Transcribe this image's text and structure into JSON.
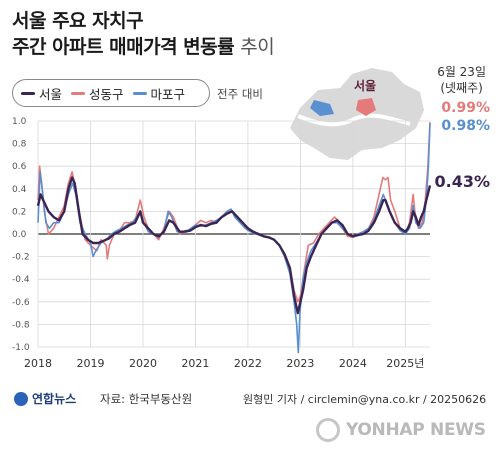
{
  "title_line1": "서울 주요 자치구",
  "title_line2_main": "주간 아파트 매매가격 변동률",
  "title_line2_light": "추이",
  "note": "전주 대비",
  "date_label_line1": "6월 23일",
  "date_label_line2": "(넷째주)",
  "map_label": "서울",
  "credit": "원형민 기자 / circlemin@yna.co.kr / 20250626",
  "source": "자료: 한국부동산원",
  "logo_text": "연합뉴스",
  "watermark_text": "YONHAP NEWS",
  "colors": {
    "seoul": "#3a2553",
    "seongdong": "#e57a7a",
    "mapo": "#5a8fd0",
    "grid": "#d8d8d8"
  },
  "chart_data": {
    "type": "line",
    "title": "서울 주요 자치구 주간 아파트 매매가격 변동률 추이",
    "ylabel": "",
    "xlabel": "",
    "ylim": [
      -1.0,
      1.0
    ],
    "yticks": [
      "1.0",
      "0.8",
      "0.6",
      "0.4",
      "0.2",
      "0.0",
      "-0.2",
      "-0.4",
      "-0.6",
      "-0.8",
      "-1.0"
    ],
    "xticks": [
      "2018",
      "2019",
      "2020",
      "2021",
      "2022",
      "2023",
      "2024",
      "2025년"
    ],
    "xlim": [
      2018.0,
      2025.47
    ],
    "series": [
      {
        "name": "서울",
        "color": "#3a2553",
        "end_label": "0.43%",
        "points": [
          [
            2018.0,
            0.25
          ],
          [
            2018.05,
            0.35
          ],
          [
            2018.1,
            0.3
          ],
          [
            2018.2,
            0.2
          ],
          [
            2018.3,
            0.15
          ],
          [
            2018.4,
            0.12
          ],
          [
            2018.5,
            0.2
          ],
          [
            2018.58,
            0.4
          ],
          [
            2018.65,
            0.5
          ],
          [
            2018.7,
            0.45
          ],
          [
            2018.78,
            0.2
          ],
          [
            2018.85,
            0.0
          ],
          [
            2018.95,
            -0.05
          ],
          [
            2019.05,
            -0.08
          ],
          [
            2019.15,
            -0.08
          ],
          [
            2019.25,
            -0.06
          ],
          [
            2019.35,
            -0.04
          ],
          [
            2019.45,
            0.0
          ],
          [
            2019.55,
            0.02
          ],
          [
            2019.65,
            0.05
          ],
          [
            2019.75,
            0.08
          ],
          [
            2019.85,
            0.1
          ],
          [
            2019.95,
            0.2
          ],
          [
            2020.0,
            0.1
          ],
          [
            2020.1,
            0.05
          ],
          [
            2020.2,
            0.0
          ],
          [
            2020.3,
            -0.02
          ],
          [
            2020.4,
            0.02
          ],
          [
            2020.5,
            0.12
          ],
          [
            2020.58,
            0.1
          ],
          [
            2020.7,
            0.02
          ],
          [
            2020.8,
            0.02
          ],
          [
            2020.9,
            0.03
          ],
          [
            2021.0,
            0.06
          ],
          [
            2021.1,
            0.08
          ],
          [
            2021.2,
            0.07
          ],
          [
            2021.3,
            0.09
          ],
          [
            2021.4,
            0.1
          ],
          [
            2021.5,
            0.15
          ],
          [
            2021.6,
            0.18
          ],
          [
            2021.7,
            0.2
          ],
          [
            2021.8,
            0.15
          ],
          [
            2021.9,
            0.1
          ],
          [
            2022.0,
            0.05
          ],
          [
            2022.1,
            0.02
          ],
          [
            2022.2,
            0.0
          ],
          [
            2022.3,
            -0.02
          ],
          [
            2022.4,
            -0.03
          ],
          [
            2022.5,
            -0.05
          ],
          [
            2022.6,
            -0.1
          ],
          [
            2022.7,
            -0.18
          ],
          [
            2022.8,
            -0.3
          ],
          [
            2022.88,
            -0.55
          ],
          [
            2022.95,
            -0.7
          ],
          [
            2023.0,
            -0.6
          ],
          [
            2023.05,
            -0.5
          ],
          [
            2023.12,
            -0.3
          ],
          [
            2023.2,
            -0.2
          ],
          [
            2023.3,
            -0.1
          ],
          [
            2023.4,
            0.0
          ],
          [
            2023.5,
            0.05
          ],
          [
            2023.6,
            0.1
          ],
          [
            2023.7,
            0.12
          ],
          [
            2023.8,
            0.08
          ],
          [
            2023.9,
            0.0
          ],
          [
            2024.0,
            -0.02
          ],
          [
            2024.1,
            -0.01
          ],
          [
            2024.2,
            0.0
          ],
          [
            2024.3,
            0.03
          ],
          [
            2024.4,
            0.1
          ],
          [
            2024.5,
            0.2
          ],
          [
            2024.58,
            0.3
          ],
          [
            2024.62,
            0.3
          ],
          [
            2024.7,
            0.2
          ],
          [
            2024.8,
            0.1
          ],
          [
            2024.9,
            0.05
          ],
          [
            2025.0,
            0.02
          ],
          [
            2025.05,
            0.05
          ],
          [
            2025.1,
            0.1
          ],
          [
            2025.15,
            0.2
          ],
          [
            2025.2,
            0.15
          ],
          [
            2025.25,
            0.08
          ],
          [
            2025.3,
            0.15
          ],
          [
            2025.35,
            0.2
          ],
          [
            2025.4,
            0.3
          ],
          [
            2025.47,
            0.43
          ]
        ]
      },
      {
        "name": "성동구",
        "color": "#e57a7a",
        "end_label": "0.99%",
        "points": [
          [
            2018.0,
            0.3
          ],
          [
            2018.03,
            0.6
          ],
          [
            2018.07,
            0.45
          ],
          [
            2018.12,
            0.2
          ],
          [
            2018.2,
            0.0
          ],
          [
            2018.3,
            0.05
          ],
          [
            2018.4,
            0.15
          ],
          [
            2018.5,
            0.25
          ],
          [
            2018.58,
            0.45
          ],
          [
            2018.65,
            0.55
          ],
          [
            2018.72,
            0.4
          ],
          [
            2018.8,
            0.15
          ],
          [
            2018.9,
            -0.05
          ],
          [
            2019.0,
            -0.1
          ],
          [
            2019.05,
            -0.12
          ],
          [
            2019.12,
            -0.15
          ],
          [
            2019.2,
            -0.05
          ],
          [
            2019.3,
            -0.1
          ],
          [
            2019.32,
            -0.22
          ],
          [
            2019.36,
            -0.1
          ],
          [
            2019.45,
            0.0
          ],
          [
            2019.55,
            0.03
          ],
          [
            2019.65,
            0.1
          ],
          [
            2019.75,
            0.1
          ],
          [
            2019.85,
            0.12
          ],
          [
            2019.95,
            0.3
          ],
          [
            2020.02,
            0.15
          ],
          [
            2020.1,
            0.05
          ],
          [
            2020.2,
            0.0
          ],
          [
            2020.3,
            -0.05
          ],
          [
            2020.4,
            0.05
          ],
          [
            2020.5,
            0.2
          ],
          [
            2020.58,
            0.15
          ],
          [
            2020.7,
            0.0
          ],
          [
            2020.8,
            0.03
          ],
          [
            2020.9,
            0.03
          ],
          [
            2021.0,
            0.08
          ],
          [
            2021.1,
            0.12
          ],
          [
            2021.2,
            0.1
          ],
          [
            2021.3,
            0.12
          ],
          [
            2021.4,
            0.1
          ],
          [
            2021.5,
            0.15
          ],
          [
            2021.6,
            0.2
          ],
          [
            2021.7,
            0.2
          ],
          [
            2021.8,
            0.15
          ],
          [
            2021.9,
            0.08
          ],
          [
            2022.0,
            0.03
          ],
          [
            2022.1,
            0.02
          ],
          [
            2022.2,
            0.0
          ],
          [
            2022.3,
            -0.02
          ],
          [
            2022.4,
            -0.03
          ],
          [
            2022.5,
            -0.05
          ],
          [
            2022.6,
            -0.1
          ],
          [
            2022.7,
            -0.2
          ],
          [
            2022.8,
            -0.3
          ],
          [
            2022.88,
            -0.5
          ],
          [
            2022.95,
            -0.6
          ],
          [
            2023.0,
            -0.55
          ],
          [
            2023.08,
            -0.3
          ],
          [
            2023.15,
            -0.1
          ],
          [
            2023.25,
            -0.08
          ],
          [
            2023.35,
            0.0
          ],
          [
            2023.45,
            0.05
          ],
          [
            2023.55,
            0.1
          ],
          [
            2023.65,
            0.15
          ],
          [
            2023.72,
            0.12
          ],
          [
            2023.8,
            0.05
          ],
          [
            2023.9,
            -0.02
          ],
          [
            2024.0,
            -0.03
          ],
          [
            2024.1,
            0.0
          ],
          [
            2024.2,
            0.02
          ],
          [
            2024.3,
            0.05
          ],
          [
            2024.4,
            0.15
          ],
          [
            2024.5,
            0.35
          ],
          [
            2024.57,
            0.5
          ],
          [
            2024.62,
            0.48
          ],
          [
            2024.67,
            0.5
          ],
          [
            2024.72,
            0.3
          ],
          [
            2024.8,
            0.2
          ],
          [
            2024.9,
            0.05
          ],
          [
            2025.0,
            0.0
          ],
          [
            2025.08,
            0.1
          ],
          [
            2025.15,
            0.35
          ],
          [
            2025.18,
            0.2
          ],
          [
            2025.25,
            0.05
          ],
          [
            2025.32,
            0.1
          ],
          [
            2025.38,
            0.3
          ],
          [
            2025.43,
            0.6
          ],
          [
            2025.47,
            0.99
          ]
        ]
      },
      {
        "name": "마포구",
        "color": "#5a8fd0",
        "end_label": "0.98%",
        "points": [
          [
            2018.0,
            0.1
          ],
          [
            2018.04,
            0.55
          ],
          [
            2018.08,
            0.4
          ],
          [
            2018.15,
            0.1
          ],
          [
            2018.22,
            0.05
          ],
          [
            2018.3,
            0.1
          ],
          [
            2018.4,
            0.1
          ],
          [
            2018.5,
            0.2
          ],
          [
            2018.58,
            0.35
          ],
          [
            2018.66,
            0.45
          ],
          [
            2018.72,
            0.35
          ],
          [
            2018.8,
            0.1
          ],
          [
            2018.9,
            0.0
          ],
          [
            2019.0,
            -0.08
          ],
          [
            2019.05,
            -0.2
          ],
          [
            2019.1,
            -0.15
          ],
          [
            2019.2,
            -0.08
          ],
          [
            2019.3,
            -0.05
          ],
          [
            2019.4,
            0.0
          ],
          [
            2019.5,
            0.03
          ],
          [
            2019.6,
            0.05
          ],
          [
            2019.7,
            0.08
          ],
          [
            2019.8,
            0.1
          ],
          [
            2019.95,
            0.2
          ],
          [
            2020.02,
            0.1
          ],
          [
            2020.1,
            0.02
          ],
          [
            2020.2,
            0.0
          ],
          [
            2020.3,
            -0.03
          ],
          [
            2020.4,
            0.03
          ],
          [
            2020.48,
            0.2
          ],
          [
            2020.55,
            0.15
          ],
          [
            2020.65,
            0.02
          ],
          [
            2020.75,
            0.02
          ],
          [
            2020.85,
            0.03
          ],
          [
            2021.0,
            0.08
          ],
          [
            2021.1,
            0.07
          ],
          [
            2021.2,
            0.08
          ],
          [
            2021.3,
            0.1
          ],
          [
            2021.4,
            0.12
          ],
          [
            2021.5,
            0.15
          ],
          [
            2021.6,
            0.2
          ],
          [
            2021.68,
            0.22
          ],
          [
            2021.75,
            0.15
          ],
          [
            2021.85,
            0.1
          ],
          [
            2021.95,
            0.05
          ],
          [
            2022.05,
            0.02
          ],
          [
            2022.15,
            0.0
          ],
          [
            2022.3,
            -0.02
          ],
          [
            2022.4,
            -0.03
          ],
          [
            2022.5,
            -0.05
          ],
          [
            2022.6,
            -0.1
          ],
          [
            2022.7,
            -0.2
          ],
          [
            2022.8,
            -0.35
          ],
          [
            2022.88,
            -0.6
          ],
          [
            2022.93,
            -0.8
          ],
          [
            2022.96,
            -1.05
          ],
          [
            2022.99,
            -0.7
          ],
          [
            2023.05,
            -0.4
          ],
          [
            2023.12,
            -0.25
          ],
          [
            2023.2,
            -0.15
          ],
          [
            2023.3,
            -0.08
          ],
          [
            2023.4,
            0.0
          ],
          [
            2023.5,
            0.05
          ],
          [
            2023.6,
            0.1
          ],
          [
            2023.7,
            0.1
          ],
          [
            2023.8,
            0.05
          ],
          [
            2023.9,
            0.0
          ],
          [
            2024.0,
            -0.02
          ],
          [
            2024.1,
            0.0
          ],
          [
            2024.2,
            0.02
          ],
          [
            2024.3,
            0.05
          ],
          [
            2024.4,
            0.12
          ],
          [
            2024.5,
            0.25
          ],
          [
            2024.58,
            0.35
          ],
          [
            2024.62,
            0.3
          ],
          [
            2024.7,
            0.2
          ],
          [
            2024.8,
            0.1
          ],
          [
            2024.9,
            0.03
          ],
          [
            2025.0,
            0.0
          ],
          [
            2025.08,
            0.05
          ],
          [
            2025.15,
            0.25
          ],
          [
            2025.2,
            0.1
          ],
          [
            2025.28,
            0.05
          ],
          [
            2025.35,
            0.1
          ],
          [
            2025.4,
            0.3
          ],
          [
            2025.44,
            0.6
          ],
          [
            2025.47,
            0.98
          ]
        ]
      }
    ]
  }
}
